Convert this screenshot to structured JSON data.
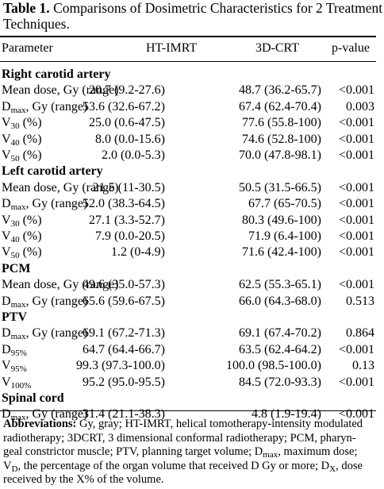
{
  "title": {
    "label": "Table 1.",
    "text_line1": "Comparisons of Dosimetric Characteristics for 2 Treatment",
    "text_line2": "Techniques."
  },
  "columns": [
    "Parameter",
    "HT-IMRT",
    "3D-CRT",
    "p-value"
  ],
  "sections": [
    {
      "name": "Right carotid artery",
      "rows": [
        {
          "param": "Mean dose, Gy (range)",
          "sym": "",
          "sub": "",
          "after": "",
          "ht": "20.7 (9.2-27.6)",
          "crt": "48.7 (36.2-65.7)",
          "p": "<0.001"
        },
        {
          "param": "",
          "sym": "D",
          "sub": "max",
          "after": ", Gy (range)",
          "ht": "53.6 (32.6-67.2)",
          "crt": "67.4 (62.4-70.4)",
          "p": "0.003"
        },
        {
          "param": "",
          "sym": "V",
          "sub": "30",
          "after": " (%)",
          "ht": "25.0 (0.6-47.5)",
          "crt": "77.6 (55.8-100)",
          "p": "<0.001"
        },
        {
          "param": "",
          "sym": "V",
          "sub": "40",
          "after": " (%)",
          "ht": "8.0 (0.0-15.6)",
          "crt": "74.6 (52.8-100)",
          "p": "<0.001"
        },
        {
          "param": "",
          "sym": "V",
          "sub": "50",
          "after": " (%)",
          "ht": "2.0 (0.0-5.3)",
          "crt": "70.0 (47.8-98.1)",
          "p": "<0.001"
        }
      ]
    },
    {
      "name": "Left carotid artery",
      "rows": [
        {
          "param": "Mean dose, Gy (range)",
          "sym": "",
          "sub": "",
          "after": "",
          "ht": "21.5 (11-30.5)",
          "crt": "50.5 (31.5-66.5)",
          "p": "<0.001"
        },
        {
          "param": "",
          "sym": "D",
          "sub": "max",
          "after": ", Gy (range)",
          "ht": "52.0 (38.3-64.5)",
          "crt": "67.7 (65-70.5)",
          "p": "<0.001"
        },
        {
          "param": "",
          "sym": "V",
          "sub": "30",
          "after": " (%)",
          "ht": "27.1 (3.3-52.7)",
          "crt": "80.3 (49.6-100)",
          "p": "<0.001"
        },
        {
          "param": "",
          "sym": "V",
          "sub": "40",
          "after": " (%)",
          "ht": "7.9 (0.0-20.5)",
          "crt": "71.9 (6.4-100)",
          "p": "<0.001"
        },
        {
          "param": "",
          "sym": "V",
          "sub": "50",
          "after": " (%)",
          "ht": "1.2 (0-4.9)",
          "crt": "71.6 (42.4-100)",
          "p": "<0.001"
        }
      ]
    },
    {
      "name": "PCM",
      "rows": [
        {
          "param": "Mean dose, Gy (range)",
          "sym": "",
          "sub": "",
          "after": "",
          "ht": "49.6 (35.0-57.3)",
          "crt": "62.5 (55.3-65.1)",
          "p": "<0.001"
        },
        {
          "param": "",
          "sym": "D",
          "sub": "max",
          "after": ", Gy (range)",
          "ht": "65.6 (59.6-67.5)",
          "crt": "66.0 (64.3-68.0)",
          "p": "0.513"
        }
      ]
    },
    {
      "name": "PTV",
      "rows": [
        {
          "param": "",
          "sym": "D",
          "sub": "max",
          "after": ", Gy (range)",
          "ht": "69.1 (67.2-71.3)",
          "crt": "69.1 (67.4-70.2)",
          "p": "0.864"
        },
        {
          "param": "",
          "sym": "D",
          "sub": "95%",
          "after": "",
          "ht": "64.7 (64.4-66.7)",
          "crt": "63.5 (62.4-64.2)",
          "p": "<0.001"
        },
        {
          "param": "",
          "sym": "V",
          "sub": "95%",
          "after": "",
          "ht": "99.3 (97.3-100.0)",
          "crt": "100.0 (98.5-100.0)",
          "p": "0.13"
        },
        {
          "param": "",
          "sym": "V",
          "sub": "100%",
          "after": "",
          "ht": "95.2 (95.0-95.5)",
          "crt": "84.5 (72.0-93.3)",
          "p": "<0.001"
        }
      ]
    },
    {
      "name": "Spinal cord",
      "rows": [
        {
          "param": "",
          "sym": "D",
          "sub": "max",
          "after": ", Gy (range)",
          "ht": "31.4 (21.1-38.3)",
          "crt": "4.8 (1.9-19.4)",
          "p": "<0.001"
        }
      ]
    }
  ],
  "abbreviations": {
    "label": "Abbreviations:",
    "l1": " Gy, gray; HT-IMRT, helical tomotherapy-intensity modulated",
    "l2": "radiotherapy; 3DCRT, 3 dimensional conformal radiotherapy; PCM, pharyn-",
    "l3": "geal constrictor muscle; PTV, planning target volume; D",
    "l3_sub": "max",
    "l3_after": ", maximum dose;",
    "l4_sym": "V",
    "l4_sub": "D",
    "l4_mid": ", the percentage of the organ volume that received D Gy or more; D",
    "l4_sub2": "X",
    "l4_after": ", dose",
    "l5": "received by the X% of the volume."
  }
}
